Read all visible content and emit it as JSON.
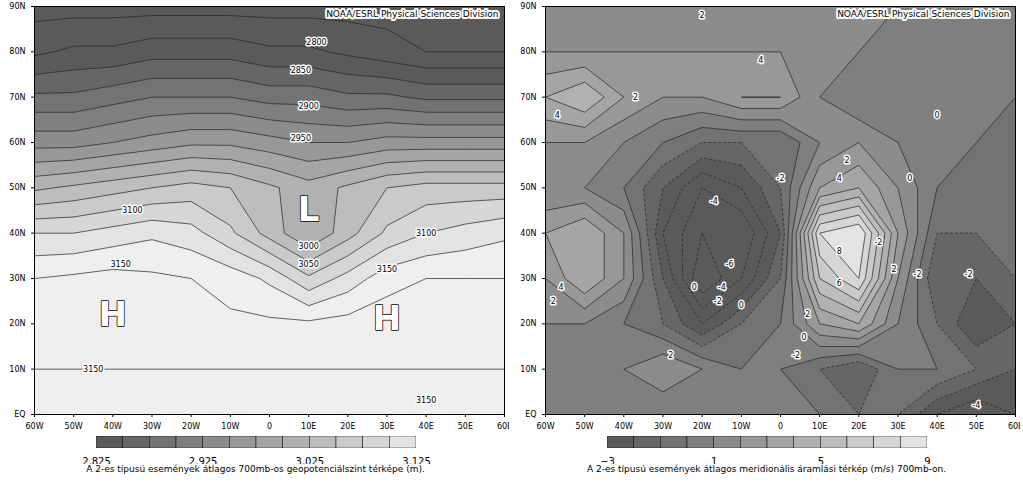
{
  "chart_data": [
    {
      "type": "contour",
      "title": "A 2-es típusú események átlagos 700mb-os geopotenciálszint térképe (m).",
      "header": "NOAA/ESRL Physical Sciences Division",
      "xlim": [
        -60,
        60
      ],
      "xticks": [
        {
          "value": -60,
          "label": "60W"
        },
        {
          "value": -50,
          "label": "50W"
        },
        {
          "value": -40,
          "label": "40W"
        },
        {
          "value": -30,
          "label": "30W"
        },
        {
          "value": -20,
          "label": "20W"
        },
        {
          "value": -10,
          "label": "10W"
        },
        0,
        {
          "value": 10,
          "label": "10E"
        },
        {
          "value": 20,
          "label": "20E"
        },
        {
          "value": 30,
          "label": "30E"
        },
        {
          "value": 40,
          "label": "40E"
        },
        {
          "value": 50,
          "label": "50E"
        },
        {
          "value": 60,
          "label": "60E"
        }
      ],
      "ylim": [
        0,
        90
      ],
      "yticks": [
        {
          "value": 0,
          "label": "EQ"
        },
        {
          "value": 10,
          "label": "10N"
        },
        {
          "value": 20,
          "label": "20N"
        },
        {
          "value": 30,
          "label": "30N"
        },
        {
          "value": 40,
          "label": "40N"
        },
        {
          "value": 50,
          "label": "50N"
        },
        {
          "value": 60,
          "label": "60N"
        },
        {
          "value": 70,
          "label": "70N"
        },
        {
          "value": 80,
          "label": "80N"
        },
        {
          "value": 90,
          "label": "90N"
        }
      ],
      "field": {
        "lon": [
          -60,
          -50,
          -40,
          -30,
          -20,
          -10,
          0,
          10,
          20,
          30,
          40,
          50,
          60
        ],
        "lat": [
          0,
          10,
          20,
          30,
          40,
          50,
          60,
          70,
          80,
          90
        ],
        "values": [
          [
            3145,
            3145,
            3145,
            3145,
            3145,
            3145,
            3145,
            3145,
            3145,
            3145,
            3145,
            3145,
            3145
          ],
          [
            3150,
            3150,
            3150,
            3150,
            3150,
            3150,
            3150,
            3150,
            3150,
            3150,
            3150,
            3150,
            3150
          ],
          [
            3160,
            3163,
            3165,
            3162,
            3158,
            3155,
            3155,
            3155,
            3160,
            3165,
            3160,
            3155,
            3155
          ],
          [
            3150,
            3155,
            3160,
            3155,
            3150,
            3140,
            3120,
            3080,
            3110,
            3140,
            3150,
            3150,
            3150
          ],
          [
            3100,
            3100,
            3110,
            3120,
            3110,
            3080,
            3040,
            3000,
            3040,
            3080,
            3100,
            3110,
            3120
          ],
          [
            3020,
            3030,
            3040,
            3050,
            3060,
            3050,
            3030,
            3010,
            3030,
            3050,
            3060,
            3060,
            3060
          ],
          [
            2940,
            2940,
            2950,
            2960,
            2970,
            2970,
            2960,
            2950,
            2950,
            2960,
            2960,
            2960,
            2960
          ],
          [
            2880,
            2880,
            2890,
            2900,
            2900,
            2900,
            2890,
            2890,
            2880,
            2880,
            2870,
            2870,
            2870
          ],
          [
            2820,
            2830,
            2830,
            2840,
            2840,
            2840,
            2830,
            2830,
            2820,
            2810,
            2800,
            2800,
            2800
          ],
          [
            2790,
            2790,
            2790,
            2790,
            2790,
            2790,
            2790,
            2790,
            2790,
            2790,
            2790,
            2790,
            2790
          ]
        ]
      },
      "levels": [
        2775,
        2800,
        2825,
        2850,
        2875,
        2900,
        2925,
        2950,
        2975,
        3000,
        3025,
        3050,
        3075,
        3100,
        3125,
        3150,
        3175
      ],
      "colorbar": {
        "range": [
          2825,
          3125
        ],
        "ticks": [
          2825,
          2925,
          3025,
          3125
        ]
      },
      "annotations": [
        {
          "lon": 12,
          "lat": 82,
          "text": "2800"
        },
        {
          "lon": 8,
          "lat": 76,
          "text": "2850"
        },
        {
          "lon": 10,
          "lat": 68,
          "text": "2900"
        },
        {
          "lon": 8,
          "lat": 61,
          "text": "2950"
        },
        {
          "lon": -35,
          "lat": 45,
          "text": "3100"
        },
        {
          "lon": -38,
          "lat": 33,
          "text": "3150"
        },
        {
          "lon": 10,
          "lat": 37,
          "text": "3000"
        },
        {
          "lon": 10,
          "lat": 33,
          "text": "3050"
        },
        {
          "lon": 40,
          "lat": 40,
          "text": "3100"
        },
        {
          "lon": 30,
          "lat": 32,
          "text": "3150"
        },
        {
          "lon": -45,
          "lat": 10,
          "text": "3150"
        },
        {
          "lon": 40,
          "lat": 3,
          "text": "3150"
        }
      ],
      "centers": [
        {
          "lon": -40,
          "lat": 22,
          "text": "H"
        },
        {
          "lon": 10,
          "lat": 45,
          "text": "L"
        },
        {
          "lon": 30,
          "lat": 21,
          "text": "H"
        }
      ]
    },
    {
      "type": "contour",
      "title": "A 2-es típusú események átlagos meridionális áramlási térkép (m/s) 700mb-on.",
      "header": "NOAA/ESRL Physical Sciences Division",
      "xlim": [
        -60,
        60
      ],
      "xticks": [
        {
          "value": -60,
          "label": "60W"
        },
        {
          "value": -50,
          "label": "50W"
        },
        {
          "value": -40,
          "label": "40W"
        },
        {
          "value": -30,
          "label": "30W"
        },
        {
          "value": -20,
          "label": "20W"
        },
        {
          "value": -10,
          "label": "10W"
        },
        0,
        {
          "value": 10,
          "label": "10E"
        },
        {
          "value": 20,
          "label": "20E"
        },
        {
          "value": 30,
          "label": "30E"
        },
        {
          "value": 40,
          "label": "40E"
        },
        {
          "value": 50,
          "label": "50E"
        },
        {
          "value": 60,
          "label": "60E"
        }
      ],
      "ylim": [
        0,
        90
      ],
      "yticks": [
        {
          "value": 0,
          "label": "EQ"
        },
        {
          "value": 10,
          "label": "10N"
        },
        {
          "value": 20,
          "label": "20N"
        },
        {
          "value": 30,
          "label": "30N"
        },
        {
          "value": 40,
          "label": "40N"
        },
        {
          "value": 50,
          "label": "50N"
        },
        {
          "value": 60,
          "label": "60N"
        },
        {
          "value": 70,
          "label": "70N"
        },
        {
          "value": 80,
          "label": "80N"
        },
        {
          "value": 90,
          "label": "90N"
        }
      ],
      "field": {
        "lon": [
          -60,
          -50,
          -40,
          -30,
          -20,
          -10,
          0,
          10,
          20,
          30,
          40,
          50,
          60
        ],
        "lat": [
          0,
          10,
          20,
          30,
          40,
          50,
          60,
          70,
          80,
          90
        ],
        "values": [
          [
            0,
            0,
            0,
            0,
            0,
            0,
            0,
            0,
            -1,
            -1,
            -3,
            -4,
            -3
          ],
          [
            0,
            0,
            1,
            2,
            1,
            0,
            0,
            -1,
            -2,
            0,
            0,
            -1,
            -2
          ],
          [
            1,
            1,
            0,
            -1,
            -3,
            -1,
            0,
            3,
            4,
            1,
            -1,
            -3,
            -2
          ],
          [
            2,
            4,
            2,
            -2,
            -6,
            -4,
            -1,
            6,
            8,
            2,
            -2,
            -2,
            -1
          ],
          [
            3,
            4,
            2,
            -3,
            -5,
            -5,
            -2,
            8,
            9,
            3,
            -1,
            -1,
            -1
          ],
          [
            1,
            1,
            0,
            -2,
            -4,
            -3,
            -1,
            3,
            4,
            2,
            0,
            -1,
            -1
          ],
          [
            2,
            2,
            1,
            0,
            -1,
            -1,
            -1,
            1,
            2,
            1,
            0,
            0,
            -1
          ],
          [
            4,
            5,
            3,
            2,
            2,
            3,
            3,
            1,
            0,
            0,
            0,
            0,
            0
          ],
          [
            2,
            2,
            2,
            2,
            2,
            2,
            2,
            1,
            1,
            0,
            0,
            0,
            0
          ],
          [
            1,
            1,
            1,
            1,
            1,
            1,
            1,
            1,
            1,
            1,
            1,
            1,
            1
          ]
        ]
      },
      "levels": [
        -7,
        -6,
        -5,
        -4,
        -3,
        -2,
        -1,
        0,
        1,
        2,
        3,
        4,
        5,
        6,
        7,
        8,
        9,
        10
      ],
      "colorbar": {
        "range": [
          -3,
          9
        ],
        "ticks": [
          -3,
          1,
          5,
          9
        ]
      },
      "annotations": [
        {
          "lon": -20,
          "lat": 88,
          "text": "2"
        },
        {
          "lon": -5,
          "lat": 78,
          "text": "4"
        },
        {
          "lon": -37,
          "lat": 70,
          "text": "2"
        },
        {
          "lon": -57,
          "lat": 66,
          "text": "4"
        },
        {
          "lon": -56,
          "lat": 28,
          "text": "4"
        },
        {
          "lon": -58,
          "lat": 25,
          "text": "2"
        },
        {
          "lon": -28,
          "lat": 13,
          "text": "2"
        },
        {
          "lon": -22,
          "lat": 28,
          "text": "0"
        },
        {
          "lon": -17,
          "lat": 47,
          "text": "-4"
        },
        {
          "lon": -13,
          "lat": 33,
          "text": "-6"
        },
        {
          "lon": -15,
          "lat": 28,
          "text": "-4"
        },
        {
          "lon": -16,
          "lat": 25,
          "text": "-2"
        },
        {
          "lon": -10,
          "lat": 24,
          "text": "0"
        },
        {
          "lon": 0,
          "lat": 52,
          "text": "-2"
        },
        {
          "lon": 17,
          "lat": 56,
          "text": "2"
        },
        {
          "lon": 15,
          "lat": 52,
          "text": "4"
        },
        {
          "lon": 40,
          "lat": 66,
          "text": "0"
        },
        {
          "lon": 33,
          "lat": 52,
          "text": "0"
        },
        {
          "lon": 15,
          "lat": 36,
          "text": "8"
        },
        {
          "lon": 15,
          "lat": 29,
          "text": "6"
        },
        {
          "lon": 7,
          "lat": 22,
          "text": "2"
        },
        {
          "lon": 6,
          "lat": 17,
          "text": "0"
        },
        {
          "lon": 4,
          "lat": 13,
          "text": "-2"
        },
        {
          "lon": 25,
          "lat": 38,
          "text": "-2"
        },
        {
          "lon": 29,
          "lat": 32,
          "text": "2"
        },
        {
          "lon": 35,
          "lat": 31,
          "text": "-2"
        },
        {
          "lon": 48,
          "lat": 31,
          "text": "-2"
        },
        {
          "lon": 50,
          "lat": 2,
          "text": "-4"
        }
      ],
      "centers": []
    }
  ]
}
